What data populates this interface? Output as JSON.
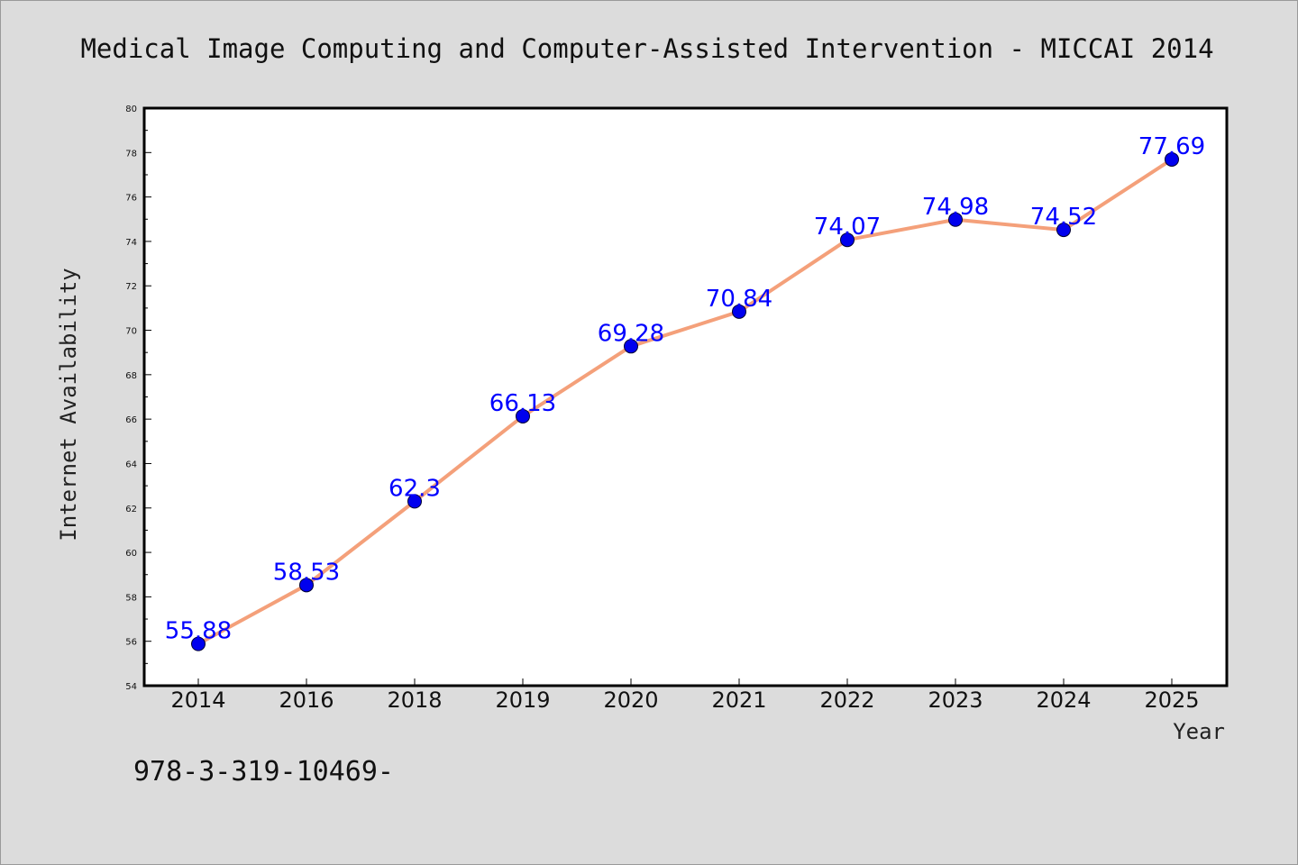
{
  "chart_data": {
    "type": "line",
    "title": "Medical Image Computing and Computer-Assisted Intervention - MICCAI 2014",
    "xlabel": "Year",
    "ylabel": "Internet Availability",
    "categories": [
      "2014",
      "2016",
      "2018",
      "2019",
      "2020",
      "2021",
      "2022",
      "2023",
      "2024",
      "2025"
    ],
    "series": [
      {
        "values": [
          55.88,
          58.53,
          62.3,
          66.13,
          69.28,
          70.84,
          74.07,
          74.98,
          74.52,
          77.69
        ],
        "data_labels": [
          "55.88",
          "58.53",
          "62.3",
          "66.13",
          "69.28",
          "70.84",
          "74.07",
          "74.98",
          "74.52",
          "77.69"
        ]
      }
    ],
    "ylim": [
      54,
      80
    ],
    "yticks": [
      "54",
      "56",
      "58",
      "60",
      "62",
      "64",
      "66",
      "68",
      "70",
      "72",
      "74",
      "76",
      "78",
      "80"
    ],
    "grid": false,
    "legend": "none",
    "line_color": "#f4a07a",
    "marker_color": "#0000ee"
  },
  "footer": {
    "text": "978-3-319-10469-"
  }
}
